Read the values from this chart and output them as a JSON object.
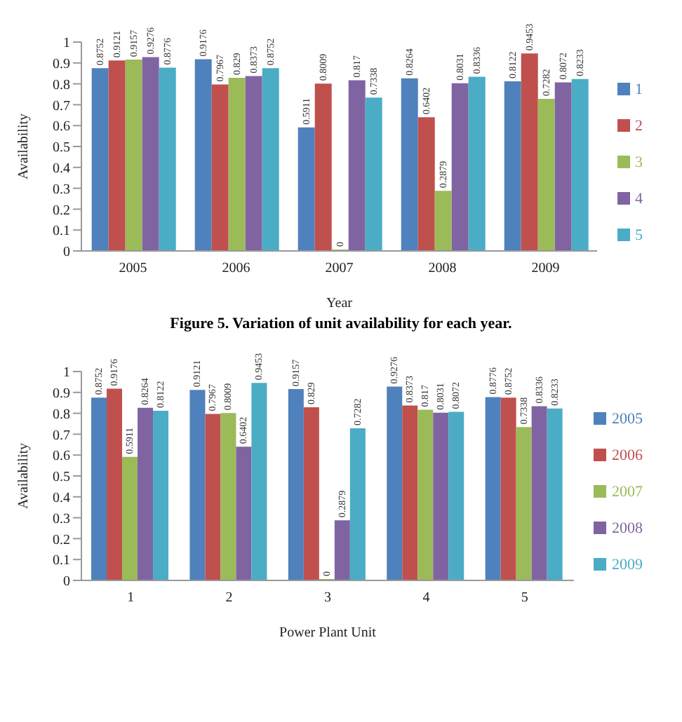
{
  "chart_data": [
    {
      "type": "bar",
      "xlabel": "Year",
      "ylabel": "Availability",
      "categories": [
        "2005",
        "2006",
        "2007",
        "2008",
        "2009"
      ],
      "series": [
        {
          "name": "1",
          "color": "#4f81bd",
          "values": [
            0.8752,
            0.9176,
            0.5911,
            0.8264,
            0.8122
          ]
        },
        {
          "name": "2",
          "color": "#c0504d",
          "values": [
            0.9121,
            0.7967,
            0.8009,
            0.6402,
            0.9453
          ]
        },
        {
          "name": "3",
          "color": "#9bbb59",
          "values": [
            0.9157,
            0.829,
            0,
            0.2879,
            0.7282
          ]
        },
        {
          "name": "4",
          "color": "#8064a2",
          "values": [
            0.9276,
            0.8373,
            0.817,
            0.8031,
            0.8072
          ]
        },
        {
          "name": "5",
          "color": "#4bacc6",
          "values": [
            0.8776,
            0.8752,
            0.7338,
            0.8336,
            0.8233
          ]
        }
      ],
      "ylim": [
        0,
        1
      ],
      "yticks": [
        0,
        0.1,
        0.2,
        0.3,
        0.4,
        0.5,
        0.6,
        0.7,
        0.8,
        0.9,
        1
      ],
      "grid": false,
      "legend": "right",
      "data_labels": true,
      "annotations": [
        "Figure 5. Variation of unit availability for each year."
      ]
    },
    {
      "type": "bar",
      "xlabel": "Power Plant Unit",
      "ylabel": "Availability",
      "categories": [
        "1",
        "2",
        "3",
        "4",
        "5"
      ],
      "series": [
        {
          "name": "2005",
          "color": "#4f81bd",
          "values": [
            0.8752,
            0.9121,
            0.9157,
            0.9276,
            0.8776
          ]
        },
        {
          "name": "2006",
          "color": "#c0504d",
          "values": [
            0.9176,
            0.7967,
            0.829,
            0.8373,
            0.8752
          ]
        },
        {
          "name": "2007",
          "color": "#9bbb59",
          "values": [
            0.5911,
            0.8009,
            0,
            0.817,
            0.7338
          ]
        },
        {
          "name": "2008",
          "color": "#8064a2",
          "values": [
            0.8264,
            0.6402,
            0.2879,
            0.8031,
            0.8336
          ]
        },
        {
          "name": "2009",
          "color": "#4bacc6",
          "values": [
            0.8122,
            0.9453,
            0.7282,
            0.8072,
            0.8233
          ]
        }
      ],
      "ylim": [
        0,
        1
      ],
      "yticks": [
        0,
        0.1,
        0.2,
        0.3,
        0.4,
        0.5,
        0.6,
        0.7,
        0.8,
        0.9,
        1
      ],
      "grid": false,
      "legend": "right",
      "data_labels": true
    }
  ]
}
